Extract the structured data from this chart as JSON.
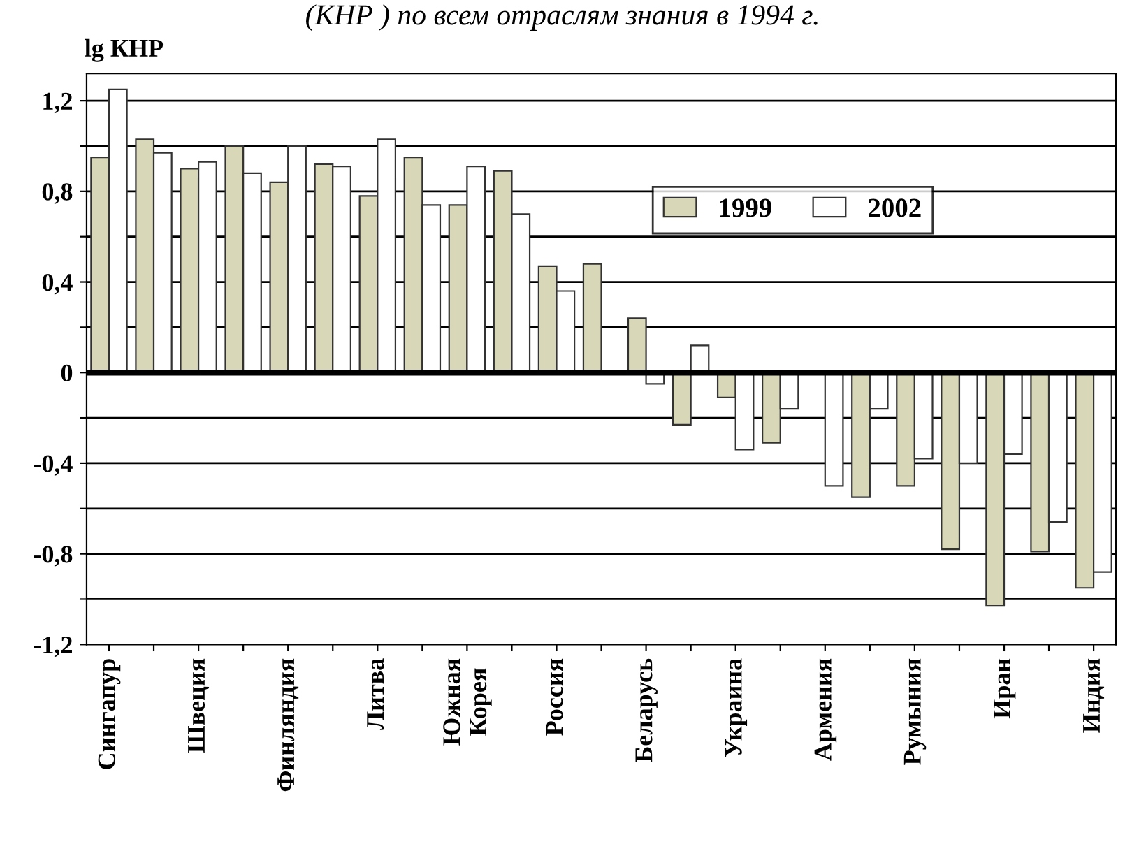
{
  "chart_data": {
    "type": "bar",
    "title": "(КНР ) по всем отраслям знания в 1994 г.",
    "ylabel": "lg КНР",
    "categories": [
      "Сингапур",
      null,
      "Швеция",
      null,
      "Финляндия",
      null,
      "Литва",
      null,
      "Южная\nКорея",
      null,
      "Россия",
      null,
      "Беларусь",
      null,
      "Украина",
      null,
      "Армения",
      null,
      "Румыния",
      null,
      "Иран",
      null,
      "Индия"
    ],
    "series": [
      {
        "name": "1999",
        "color": "#d8d8b8",
        "values": [
          0.95,
          1.03,
          0.9,
          1.0,
          0.84,
          0.92,
          0.78,
          0.95,
          0.74,
          0.89,
          0.47,
          0.48,
          0.24,
          -0.23,
          -0.11,
          -0.31,
          null,
          -0.55,
          -0.5,
          -0.78,
          -1.03,
          -0.79,
          -0.95
        ]
      },
      {
        "name": "2002",
        "color": "#ffffff",
        "values": [
          1.25,
          0.97,
          0.93,
          0.88,
          1.0,
          0.91,
          1.03,
          0.74,
          0.91,
          0.7,
          0.36,
          null,
          -0.05,
          0.12,
          -0.34,
          -0.16,
          -0.5,
          -0.16,
          -0.38,
          -0.4,
          -0.36,
          -0.66,
          -0.88
        ]
      }
    ],
    "ylim": [
      -1.2,
      1.32
    ],
    "yticks": [
      {
        "value": -1.2,
        "label": "-1,2"
      },
      {
        "value": -1.0,
        "label": null
      },
      {
        "value": -0.8,
        "label": "-0,8"
      },
      {
        "value": -0.6,
        "label": null
      },
      {
        "value": -0.4,
        "label": "-0,4"
      },
      {
        "value": -0.2,
        "label": null
      },
      {
        "value": 0,
        "label": "0"
      },
      {
        "value": 0.2,
        "label": null
      },
      {
        "value": 0.4,
        "label": "0,4"
      },
      {
        "value": 0.6,
        "label": null
      },
      {
        "value": 0.8,
        "label": "0,8"
      },
      {
        "value": 1.0,
        "label": null
      },
      {
        "value": 1.2,
        "label": "1,2"
      }
    ],
    "grid": "y",
    "legend": "top right"
  }
}
